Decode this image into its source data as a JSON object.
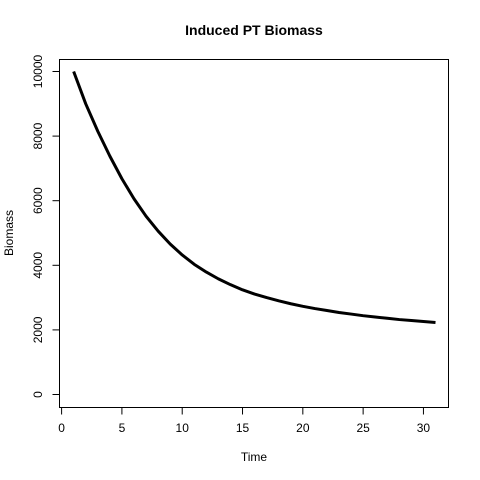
{
  "chart_data": {
    "type": "line",
    "title": "Induced PT Biomass",
    "xlabel": "Time",
    "ylabel": "Biomass",
    "xlim": [
      1,
      31
    ],
    "ylim": [
      0,
      10000
    ],
    "x_ticks": [
      0,
      5,
      10,
      15,
      20,
      25,
      30
    ],
    "y_ticks": [
      0,
      2000,
      4000,
      6000,
      8000,
      10000
    ],
    "x_tick_labels": [
      "0",
      "5",
      "10",
      "15",
      "20",
      "25",
      "30"
    ],
    "y_tick_labels": [
      "0",
      "2000",
      "4000",
      "6000",
      "8000",
      "10000"
    ],
    "grid": false,
    "legend": "none",
    "line_color": "#000000",
    "series": [
      {
        "x": [
          1,
          2,
          3,
          4,
          5,
          6,
          7,
          8,
          9,
          10,
          11,
          12,
          13,
          14,
          15,
          16,
          17,
          18,
          19,
          20,
          21,
          22,
          23,
          24,
          25,
          26,
          27,
          28,
          29,
          30,
          31
        ],
        "values": [
          10000,
          9000,
          8150,
          7380,
          6680,
          6060,
          5520,
          5060,
          4660,
          4320,
          4030,
          3790,
          3580,
          3400,
          3240,
          3110,
          3000,
          2900,
          2810,
          2730,
          2660,
          2600,
          2540,
          2490,
          2440,
          2400,
          2360,
          2320,
          2290,
          2260,
          2230
        ]
      }
    ]
  }
}
